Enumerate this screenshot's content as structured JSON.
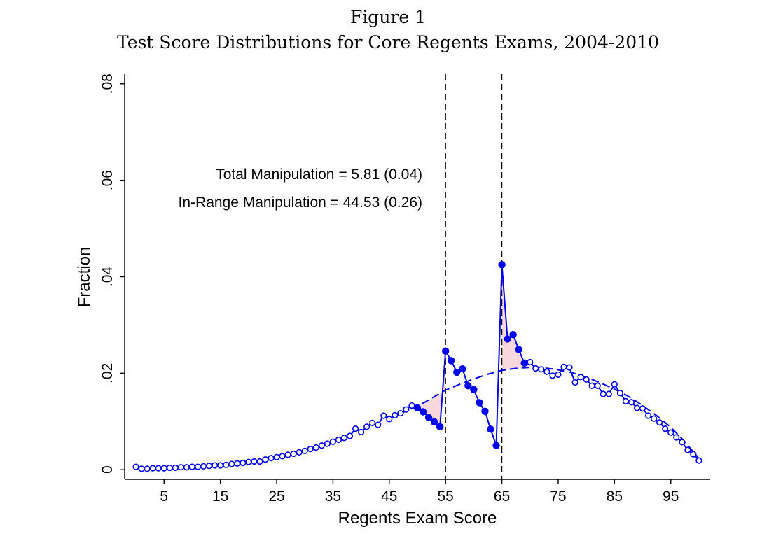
{
  "figure": {
    "number": "Figure 1",
    "title": "Test Score Distributions for Core Regents Exams, 2004-2010"
  },
  "annotations": {
    "total_manipulation": "Total Manipulation = 5.81 (0.04)",
    "in_range_manipulation": "In-Range Manipulation = 44.53 (0.26)"
  },
  "colors": {
    "series": "#0000ee",
    "shade": "#f8d8dc",
    "axis": "#000000"
  },
  "chart_data": {
    "type": "line",
    "title": "Test Score Distributions for Core Regents Exams, 2004-2010",
    "xlabel": "Regents Exam Score",
    "ylabel": "Fraction",
    "xlim": [
      -2,
      102
    ],
    "ylim": [
      -0.002,
      0.082
    ],
    "xticks": [
      5,
      15,
      25,
      35,
      45,
      55,
      65,
      75,
      85,
      95
    ],
    "xtick_labels": [
      "5",
      "15",
      "25",
      "35",
      "45",
      "55",
      "65",
      "75",
      "85",
      "95"
    ],
    "yticks": [
      0,
      0.02,
      0.04,
      0.06,
      0.08
    ],
    "ytick_labels": [
      "0",
      ".02",
      ".04",
      ".06",
      ".08"
    ],
    "grid": false,
    "reference_lines_x": [
      55,
      65
    ],
    "series": [
      {
        "style": "solid line with markers (hollow outside manipulation range, filled inside)",
        "x": [
          0,
          1,
          2,
          3,
          4,
          5,
          6,
          7,
          8,
          9,
          10,
          11,
          12,
          13,
          14,
          15,
          16,
          17,
          18,
          19,
          20,
          21,
          22,
          23,
          24,
          25,
          26,
          27,
          28,
          29,
          30,
          31,
          32,
          33,
          34,
          35,
          36,
          37,
          38,
          39,
          40,
          41,
          42,
          43,
          44,
          45,
          46,
          47,
          48,
          49,
          50,
          51,
          52,
          53,
          54,
          55,
          56,
          57,
          58,
          59,
          60,
          61,
          62,
          63,
          64,
          65,
          66,
          67,
          68,
          69,
          70,
          71,
          72,
          73,
          74,
          75,
          76,
          77,
          78,
          79,
          80,
          81,
          82,
          83,
          84,
          85,
          86,
          87,
          88,
          89,
          90,
          91,
          92,
          93,
          94,
          95,
          96,
          97,
          98,
          99,
          100
        ],
        "y": [
          0.0006,
          0.0002,
          0.0002,
          0.0003,
          0.0003,
          0.0003,
          0.0004,
          0.0004,
          0.0005,
          0.0005,
          0.0006,
          0.0006,
          0.0007,
          0.0008,
          0.0009,
          0.0009,
          0.001,
          0.0012,
          0.0013,
          0.0014,
          0.0016,
          0.0017,
          0.0017,
          0.0021,
          0.0024,
          0.0026,
          0.0028,
          0.0031,
          0.0033,
          0.0036,
          0.0039,
          0.0043,
          0.0046,
          0.005,
          0.0054,
          0.0058,
          0.0062,
          0.0066,
          0.007,
          0.0085,
          0.0078,
          0.0089,
          0.0097,
          0.0093,
          0.0112,
          0.0105,
          0.0113,
          0.0117,
          0.0125,
          0.0133,
          0.0128,
          0.012,
          0.0108,
          0.0099,
          0.0089,
          0.0246,
          0.0226,
          0.0202,
          0.0209,
          0.0174,
          0.0166,
          0.0139,
          0.0121,
          0.0084,
          0.005,
          0.0425,
          0.0271,
          0.028,
          0.0249,
          0.0221,
          0.0223,
          0.021,
          0.0208,
          0.0203,
          0.0195,
          0.0197,
          0.0213,
          0.0212,
          0.0181,
          0.0192,
          0.0187,
          0.0174,
          0.0174,
          0.0157,
          0.0157,
          0.0177,
          0.0159,
          0.0142,
          0.014,
          0.0128,
          0.0127,
          0.0112,
          0.0106,
          0.0098,
          0.0085,
          0.0077,
          0.0067,
          0.0057,
          0.0041,
          0.0032,
          0.0019
        ],
        "filled_marker_x_range": [
          50,
          69
        ]
      },
      {
        "style": "dashed counterfactual fit",
        "x": [
          45,
          47.5,
          50,
          52.5,
          55,
          57.5,
          60,
          62.5,
          65,
          67.5,
          70,
          72.5,
          75,
          77.5,
          80,
          82.5,
          85,
          87.5,
          90,
          92.5,
          95,
          97.5,
          100
        ],
        "y": [
          0.0106,
          0.0119,
          0.0131,
          0.0148,
          0.0165,
          0.0177,
          0.0188,
          0.0198,
          0.0206,
          0.021,
          0.0212,
          0.0211,
          0.0207,
          0.0201,
          0.0192,
          0.018,
          0.0167,
          0.0152,
          0.0133,
          0.0112,
          0.0088,
          0.0058,
          0.0023
        ]
      }
    ],
    "shaded_regions_x": [
      [
        50,
        55
      ],
      [
        65,
        70
      ]
    ]
  }
}
